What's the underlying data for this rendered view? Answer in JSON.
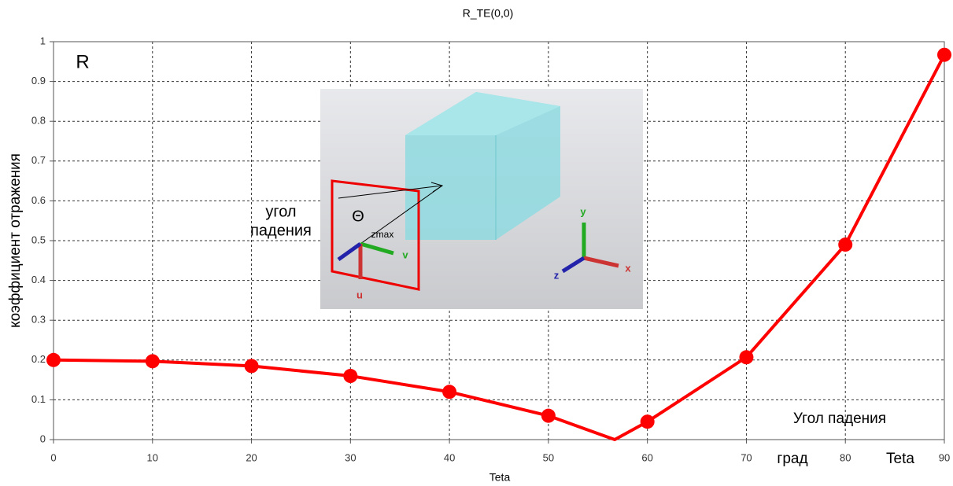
{
  "chart_data": {
    "type": "line",
    "title": "R_TE(0,0)",
    "x_label": "Teta",
    "y_label": "коэффициент отражения",
    "x": [
      0,
      10,
      20,
      30,
      40,
      50,
      56.7,
      60,
      70,
      80,
      90
    ],
    "series": [
      {
        "name": "R",
        "color": "#ff0000",
        "values": [
          0.2,
          0.197,
          0.185,
          0.16,
          0.12,
          0.06,
          0,
          0.045,
          0.207,
          0.49,
          0.967
        ],
        "markers": [
          true,
          true,
          true,
          true,
          true,
          true,
          false,
          true,
          true,
          true,
          true
        ]
      }
    ],
    "xlim": [
      0,
      90
    ],
    "ylim": [
      0,
      1
    ],
    "xticks": [
      0,
      10,
      20,
      30,
      40,
      50,
      60,
      70,
      80,
      90
    ],
    "yticks": [
      0,
      0.1,
      0.2,
      0.3,
      0.4,
      0.5,
      0.6,
      0.7,
      0.8,
      0.9,
      1
    ],
    "grid": true,
    "annotations": {
      "r": "R",
      "ugol": "угол",
      "padeniya": "падения",
      "theta": "Θ",
      "zmax": "zmax",
      "v": "v",
      "u": "u",
      "axis_y": "y",
      "axis_x": "x",
      "axis_z": "z",
      "angle_caption": "Угол падения",
      "grad": "град",
      "teta": "Teta"
    }
  }
}
